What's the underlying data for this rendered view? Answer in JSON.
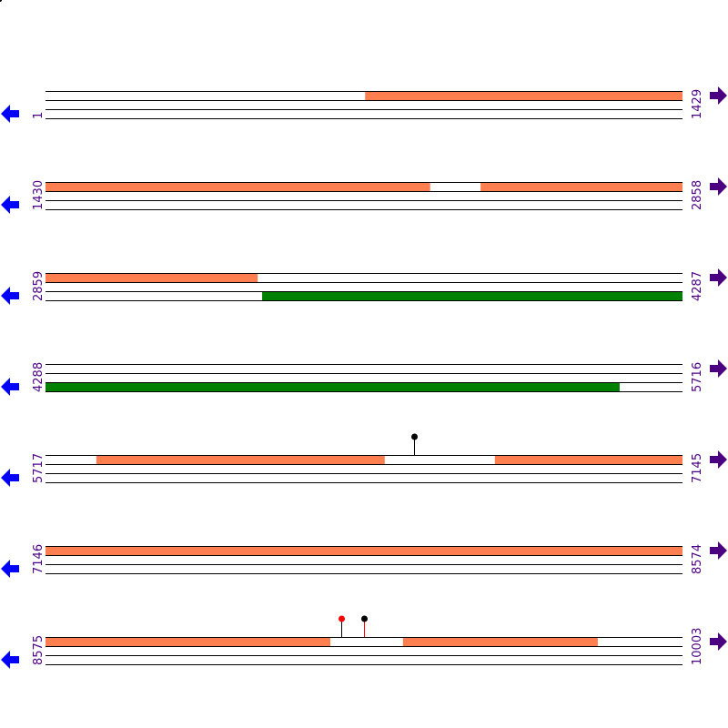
{
  "colors": {
    "top_feature": "#ff7f50",
    "bottom_feature": "#008000",
    "label": "#4b0082",
    "left_arrow": "#0000ff",
    "right_arrow": "#4b0082",
    "line": "#000000"
  },
  "rows": [
    {
      "start": "1",
      "end": "1429",
      "s": 1,
      "e": 1429
    },
    {
      "start": "1430",
      "end": "2858",
      "s": 1430,
      "e": 2858
    },
    {
      "start": "2859",
      "end": "4287",
      "s": 2859,
      "e": 4287
    },
    {
      "start": "4288",
      "end": "5716",
      "s": 4288,
      "e": 5716
    },
    {
      "start": "5717",
      "end": "7145",
      "s": 5717,
      "e": 7145
    },
    {
      "start": "7146",
      "end": "8574",
      "s": 7146,
      "e": 8574
    },
    {
      "start": "8575",
      "end": "10003",
      "s": 8575,
      "e": 10003
    }
  ],
  "features": [
    {
      "strand": "top",
      "from": 718,
      "to": 2293
    },
    {
      "strand": "top",
      "from": 2406,
      "to": 3335
    },
    {
      "strand": "bottom",
      "from": 3345,
      "to": 5576
    },
    {
      "strand": "top",
      "from": 5831,
      "to": 6478
    },
    {
      "strand": "top",
      "from": 6725,
      "to": 9214
    },
    {
      "strand": "top",
      "from": 9377,
      "to": 9814
    }
  ],
  "markers": [
    {
      "pos": 6544,
      "color": "#000000"
    },
    {
      "pos": 9238,
      "color": "#ff0000"
    },
    {
      "pos": 9289,
      "color": "#000000"
    }
  ]
}
